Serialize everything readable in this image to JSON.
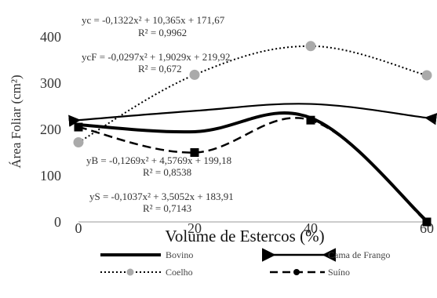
{
  "chart_data": {
    "type": "line",
    "title": "",
    "xlabel": "Volume de Estercos (%)",
    "ylabel": "Área Foliar (cm²)",
    "x": [
      0,
      20,
      40,
      60
    ],
    "x_ticks": [
      "0",
      "20",
      "40",
      "60"
    ],
    "y_ticks": [
      "0",
      "100",
      "200",
      "300",
      "400"
    ],
    "xlim": [
      0,
      60
    ],
    "ylim": [
      0,
      400
    ],
    "grid": false,
    "legend_position": "bottom",
    "series": [
      {
        "name": "Bovino",
        "values": [
          210,
          195,
          225,
          2
        ],
        "style": "solid-thick",
        "color": "#000000",
        "marker": "none"
      },
      {
        "name": "Cama de Frango",
        "values": [
          220,
          240,
          255,
          225
        ],
        "style": "solid-arrow",
        "color": "#000000",
        "marker": "arrow"
      },
      {
        "name": "Coelho",
        "values": [
          172,
          318,
          380,
          317
        ],
        "style": "dotted",
        "color": "#000000",
        "marker": "circle"
      },
      {
        "name": "Suíno",
        "values": [
          205,
          150,
          220,
          0
        ],
        "style": "dashed",
        "color": "#000000",
        "marker": "square"
      }
    ],
    "annotations": [
      {
        "id": "eq-c",
        "eq": "yc = -0,1322x² + 10,365x + 171,67",
        "r2": "R² = 0,9962"
      },
      {
        "id": "eq-cf",
        "eq": "ycF = -0,0297x² + 1,9029x + 219,92",
        "r2": "R² = 0,672"
      },
      {
        "id": "eq-b",
        "eq": "yB = -0,1269x² + 4,5769x + 199,18",
        "r2": "R² = 0,8538"
      },
      {
        "id": "eq-s",
        "eq": "yS = -0,1037x² + 3,5052x + 183,91",
        "r2": "R² = 0,7143"
      }
    ],
    "marker_color": "#aaaaaa"
  }
}
